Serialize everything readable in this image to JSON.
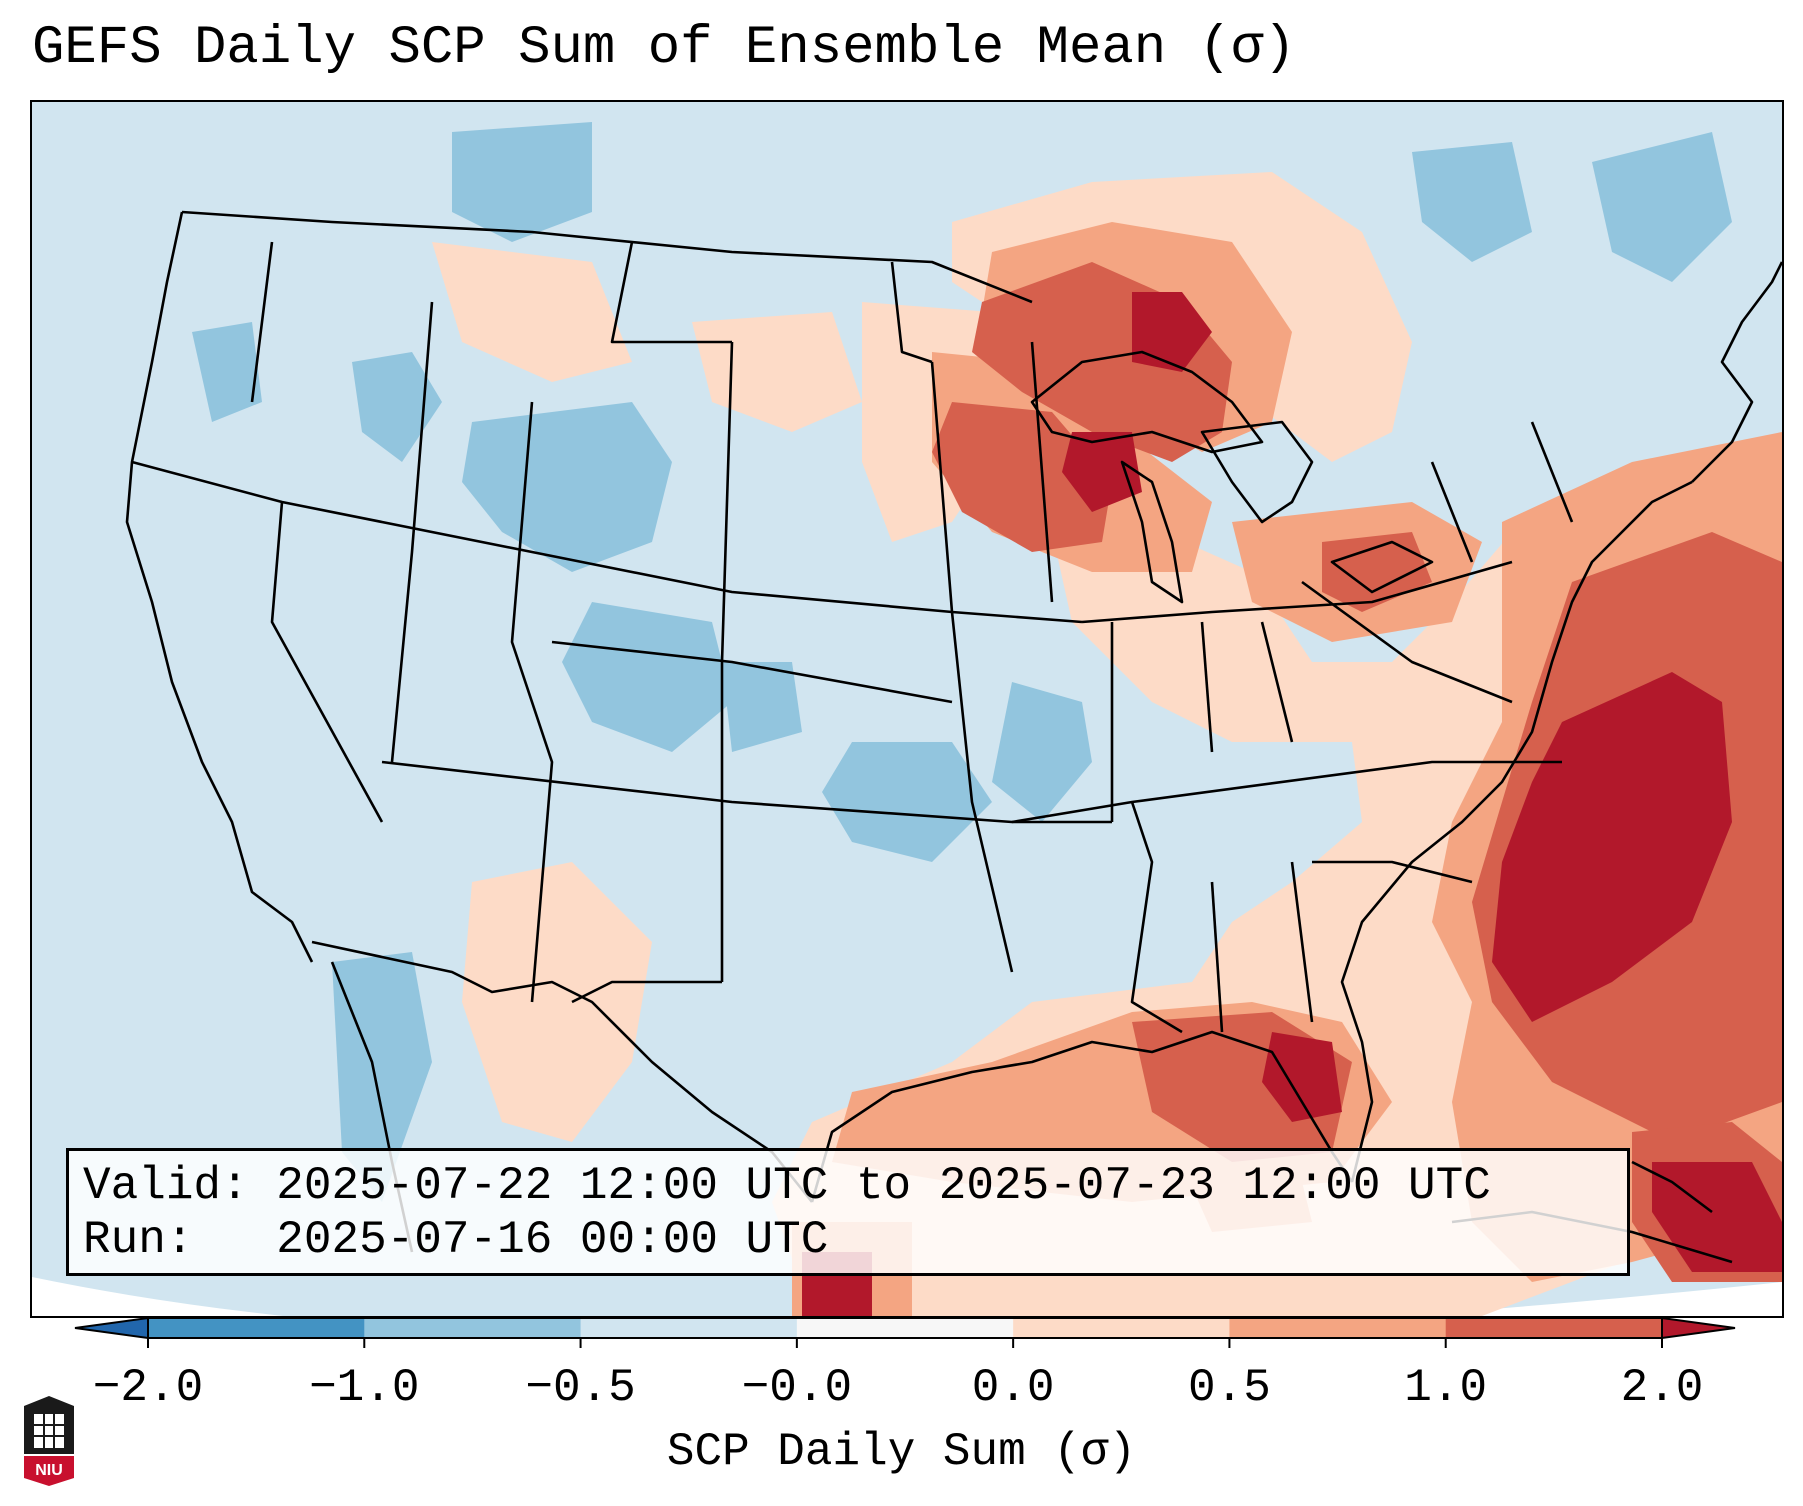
{
  "title": "GEFS Daily SCP Sum of Ensemble Mean (σ)",
  "info": {
    "valid_label": "Valid:",
    "valid_value": "2025-07-22 12:00 UTC to 2025-07-23 12:00 UTC",
    "run_label": "Run:",
    "run_value": "2025-07-16 00:00 UTC"
  },
  "colorbar": {
    "label": "SCP Daily Sum (σ)",
    "ticks": [
      "−2.0",
      "−1.0",
      "−0.5",
      "−0.0",
      "0.0",
      "0.5",
      "1.0",
      "2.0"
    ],
    "bins": [
      {
        "range": "< -2.0",
        "color": "#2166ac"
      },
      {
        "range": "-2.0 to -1.0",
        "color": "#4393c3"
      },
      {
        "range": "-1.0 to -0.5",
        "color": "#92c5de"
      },
      {
        "range": "-0.5 to -0.0",
        "color": "#d1e5f0"
      },
      {
        "range": "-0.0 to 0.0",
        "color": "#f7f7f7"
      },
      {
        "range": "0.0 to 0.5",
        "color": "#fddbc7"
      },
      {
        "range": "0.5 to 1.0",
        "color": "#f4a582"
      },
      {
        "range": "1.0 to 2.0",
        "color": "#d6604d"
      },
      {
        "range": "> 2.0",
        "color": "#b2182b"
      }
    ]
  },
  "logo": {
    "text": "NIU",
    "name": "Northern Illinois University"
  },
  "map": {
    "projection": "Lambert Conformal (CONUS)",
    "regions": [
      {
        "name": "Upper Midwest / Great Lakes",
        "sigma": "1.0 to 2.0+"
      },
      {
        "name": "Western Atlantic / Southeast Coast",
        "sigma": "1.0 to 2.0+"
      },
      {
        "name": "Gulf of Mexico",
        "sigma": "0.5 to 2.0+"
      },
      {
        "name": "Northeast Ohio Valley",
        "sigma": "0.5 to 1.0"
      },
      {
        "name": "Rockies / Plains",
        "sigma": "-1.0 to -0.5"
      }
    ]
  }
}
